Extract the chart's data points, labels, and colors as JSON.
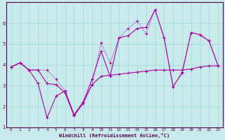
{
  "background_color": "#c8eaea",
  "grid_color": "#aadddd",
  "line_color": "#aa00aa",
  "xlabel": "Windchill (Refroidissement éolien,°C)",
  "xlim": [
    -0.5,
    23.5
  ],
  "ylim": [
    1,
    7
  ],
  "yticks": [
    1,
    2,
    3,
    4,
    5,
    6
  ],
  "xticks": [
    0,
    1,
    2,
    3,
    4,
    5,
    6,
    7,
    8,
    9,
    10,
    11,
    12,
    13,
    14,
    15,
    16,
    17,
    18,
    19,
    20,
    21,
    22,
    23
  ],
  "line1_x": [
    0,
    1,
    2,
    3,
    4,
    5,
    6,
    7,
    8,
    9,
    10,
    11,
    12,
    13,
    14,
    15,
    16,
    17,
    18,
    19,
    20,
    21,
    22,
    23
  ],
  "line1_y": [
    3.9,
    4.1,
    3.75,
    3.75,
    3.1,
    3.05,
    2.65,
    1.55,
    2.15,
    3.05,
    3.45,
    3.5,
    3.55,
    3.6,
    3.65,
    3.7,
    3.75,
    3.75,
    3.75,
    3.75,
    3.8,
    3.9,
    3.95,
    3.95
  ],
  "line2_x": [
    0,
    1,
    2,
    3,
    4,
    5,
    6,
    7,
    8,
    9,
    10,
    11,
    12,
    13,
    14,
    15,
    16,
    17,
    18,
    19,
    20,
    21,
    22,
    23
  ],
  "line2_y": [
    3.9,
    4.1,
    3.75,
    3.1,
    1.45,
    2.5,
    2.75,
    1.6,
    2.2,
    3.3,
    4.65,
    3.45,
    5.3,
    5.4,
    5.75,
    5.8,
    6.65,
    5.3,
    2.95,
    3.6,
    5.55,
    5.45,
    5.15,
    3.95
  ],
  "line3_x": [
    0,
    1,
    2,
    3,
    4,
    5,
    6,
    7,
    8,
    9,
    10,
    11,
    12,
    13,
    14,
    15,
    16,
    17,
    18,
    19,
    20,
    21,
    22,
    23
  ],
  "line3_y": [
    3.9,
    4.1,
    3.75,
    3.75,
    3.75,
    3.3,
    2.75,
    1.6,
    2.2,
    3.05,
    5.05,
    4.1,
    5.3,
    5.75,
    6.1,
    5.5,
    6.65,
    5.3,
    2.95,
    3.65,
    5.55,
    5.45,
    5.15,
    3.95
  ]
}
